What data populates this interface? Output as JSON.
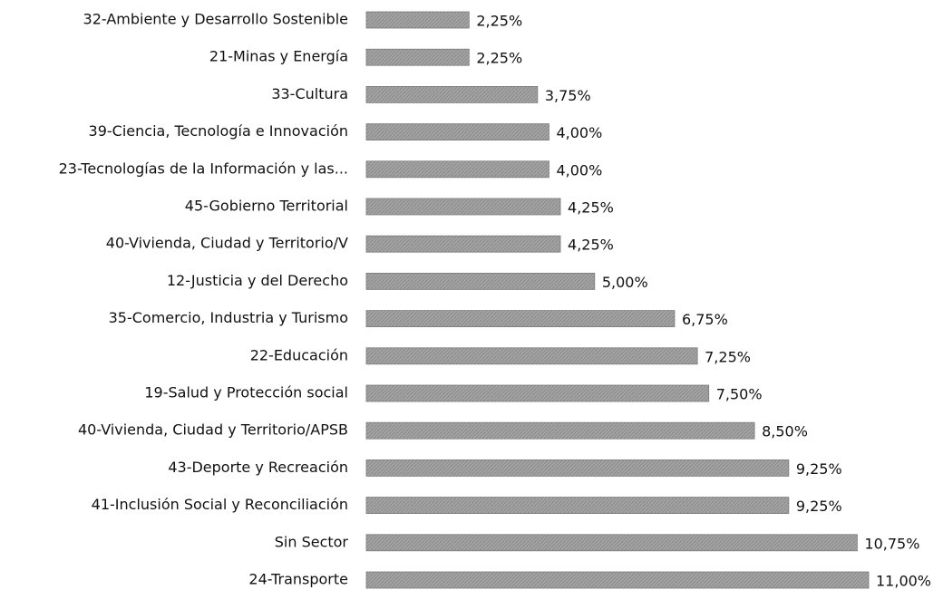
{
  "chart_data": {
    "type": "bar",
    "orientation": "horizontal",
    "color": "#a3a3a3",
    "categories": [
      "32-Ambiente y Desarrollo Sostenible",
      "21-Minas y Energía",
      "33-Cultura",
      "39-Ciencia, Tecnología e Innovación",
      "23-Tecnologías de la Información y las...",
      "45-Gobierno Territorial",
      "40-Vivienda, Ciudad y Territorio/V",
      "12-Justicia y del Derecho",
      "35-Comercio, Industria y Turismo",
      "22-Educación",
      "19-Salud y Protección social",
      "40-Vivienda, Ciudad y Territorio/APSB",
      "43-Deporte y Recreación",
      "41-Inclusión Social y Reconciliación",
      "Sin Sector",
      "24-Transporte"
    ],
    "values": [
      2.25,
      2.25,
      3.75,
      4.0,
      4.0,
      4.25,
      4.25,
      5.0,
      6.75,
      7.25,
      7.5,
      8.5,
      9.25,
      9.25,
      10.75,
      11.0
    ],
    "value_labels": [
      "2,25%",
      "2,25%",
      "3,75%",
      "4,00%",
      "4,00%",
      "4,25%",
      "4,25%",
      "5,00%",
      "6,75%",
      "7,25%",
      "7,50%",
      "8,50%",
      "9,25%",
      "9,25%",
      "10,75%",
      "11,00%"
    ]
  }
}
